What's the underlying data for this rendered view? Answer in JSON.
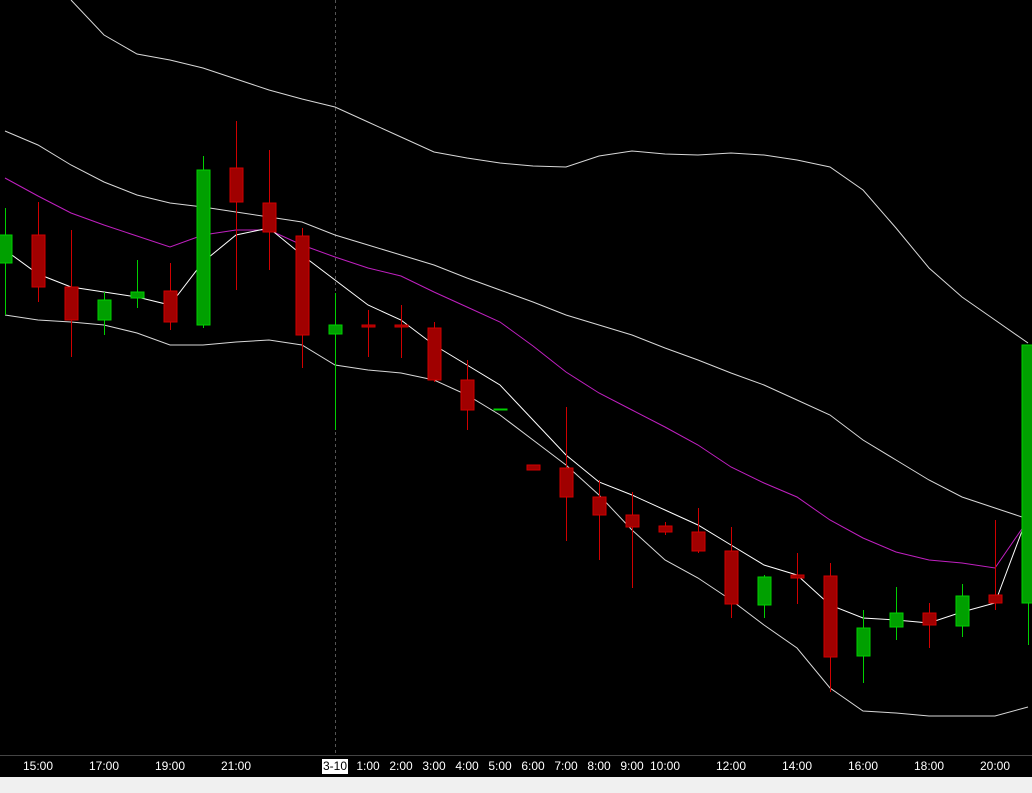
{
  "chart_data": {
    "type": "candlestick",
    "categories": [
      null,
      "15:00",
      null,
      "17:00",
      null,
      "19:00",
      null,
      "21:00",
      null,
      null,
      "3-10",
      "1:00",
      "2:00",
      "3:00",
      "4:00",
      "5:00",
      "6:00",
      "7:00",
      "8:00",
      "9:00",
      "10:00",
      null,
      "12:00",
      null,
      "14:00",
      null,
      "16:00",
      null,
      "18:00",
      null,
      "20:00",
      null
    ],
    "day_break": 10,
    "up_color": "#00a000",
    "down_color": "#a00000",
    "ylim": [
      0,
      755
    ],
    "open": [
      492,
      520,
      468,
      435,
      457,
      464,
      430,
      587,
      552,
      519,
      421,
      430,
      430,
      427,
      375,
      345,
      290,
      287,
      258,
      240,
      229,
      223,
      204,
      150,
      180,
      179,
      99,
      128,
      142,
      129,
      160,
      152
    ],
    "high": [
      547,
      553,
      525,
      463,
      495,
      492,
      599,
      634,
      605,
      527,
      462,
      445,
      450,
      433,
      395,
      346,
      290,
      348,
      275,
      263,
      233,
      247,
      228,
      180,
      202,
      192,
      145,
      168,
      152,
      171,
      235,
      410
    ],
    "low": [
      440,
      453,
      398,
      420,
      447,
      425,
      427,
      465,
      485,
      387,
      325,
      398,
      397,
      373,
      325,
      345,
      285,
      214,
      195,
      167,
      220,
      202,
      137,
      137,
      151,
      63,
      72,
      115,
      107,
      118,
      145,
      110
    ],
    "close": [
      520,
      468,
      435,
      455,
      463,
      433,
      585,
      553,
      523,
      420,
      430,
      428,
      428,
      375,
      345,
      346,
      285,
      258,
      240,
      228,
      223,
      204,
      151,
      178,
      177,
      98,
      127,
      142,
      130,
      159,
      152,
      410
    ],
    "overlays": [
      {
        "color": "#d8d8d8",
        "values": [
          null,
          null,
          755,
          720,
          701,
          695,
          687,
          676,
          665,
          656,
          648,
          633,
          618,
          603,
          597,
          592,
          589,
          588,
          599,
          604,
          601,
          600,
          602,
          600,
          595,
          588,
          565,
          527,
          487,
          458,
          435,
          412
        ]
      },
      {
        "color": "#d8d8d8",
        "values": [
          624,
          610,
          590,
          573,
          560,
          552,
          548,
          543,
          538,
          533,
          520,
          510,
          500,
          490,
          477,
          465,
          453,
          440,
          430,
          420,
          407,
          395,
          382,
          370,
          355,
          340,
          315,
          295,
          275,
          258,
          247,
          236
        ]
      },
      {
        "color": "#c020c0",
        "values": [
          577,
          559,
          542,
          530,
          519,
          508,
          520,
          525,
          525,
          510,
          498,
          487,
          479,
          463,
          448,
          433,
          409,
          383,
          362,
          345,
          328,
          310,
          288,
          272,
          258,
          235,
          217,
          203,
          195,
          192,
          187,
          235
        ]
      },
      {
        "color": "#ffffff",
        "values": [
          505,
          481,
          468,
          463,
          458,
          450,
          493,
          520,
          527,
          500,
          475,
          450,
          435,
          410,
          390,
          370,
          335,
          300,
          273,
          260,
          245,
          230,
          210,
          190,
          180,
          150,
          137,
          135,
          132,
          143,
          152,
          240
        ]
      },
      {
        "color": "#d8d8d8",
        "values": [
          440,
          435,
          433,
          430,
          422,
          410,
          410,
          413,
          415,
          410,
          390,
          385,
          382,
          375,
          360,
          340,
          315,
          290,
          260,
          225,
          195,
          177,
          155,
          130,
          107,
          67,
          44,
          42,
          39,
          39,
          39,
          48
        ]
      }
    ]
  }
}
